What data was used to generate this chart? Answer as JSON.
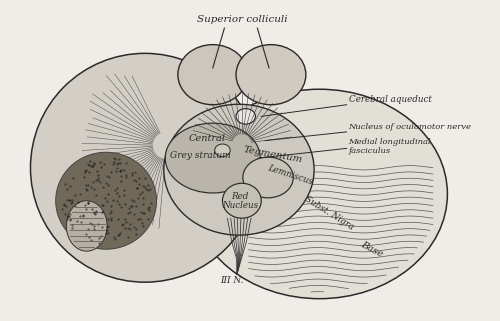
{
  "title": "",
  "bg_color": "#f0ede8",
  "line_color": "#2a2a2a",
  "labels": {
    "superior_colliculi": "Superior colliculi",
    "cerebral_aqueduct": "Cerebral aqueduct",
    "nucleus_oculomotor": "Nucleus of oculomotor nerve",
    "medial_longitudinal": "Medial longitudinal",
    "fasciculus": "fasciculus",
    "central": "Central",
    "grey_stratum": "Grey stratum",
    "tegmentum": "Tegmentum",
    "lemniscus": "Lemniscus",
    "red_nucleus_1": "Red",
    "red_nucleus_2": "Nucleus",
    "subst_nigra": "Subst. Nigra",
    "base": "Base",
    "iii_n": "III N."
  },
  "figsize": [
    5.0,
    3.21
  ],
  "dpi": 100
}
